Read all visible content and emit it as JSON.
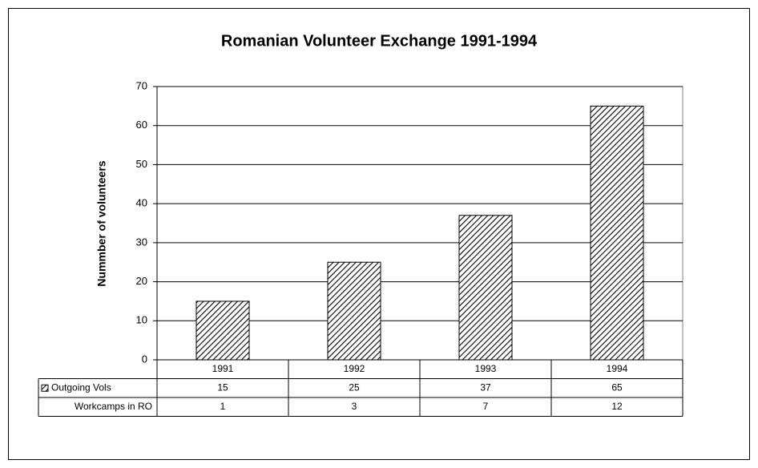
{
  "chart_data": {
    "type": "bar",
    "title": "Romanian Volunteer Exchange 1991-1994",
    "y_label": "Nummber of volunteers",
    "categories": [
      "1991",
      "1992",
      "1993",
      "1994"
    ],
    "series": [
      {
        "name": "Outgoing Vols",
        "color": "#000000",
        "values": [
          15,
          25,
          37,
          65
        ]
      },
      {
        "name": "Workcamps in RO",
        "values": [
          1,
          3,
          7,
          12
        ]
      }
    ],
    "ylim": [
      0,
      70
    ],
    "yticks": [
      0,
      10,
      20,
      30,
      40,
      50,
      60,
      70
    ],
    "grid": true
  }
}
